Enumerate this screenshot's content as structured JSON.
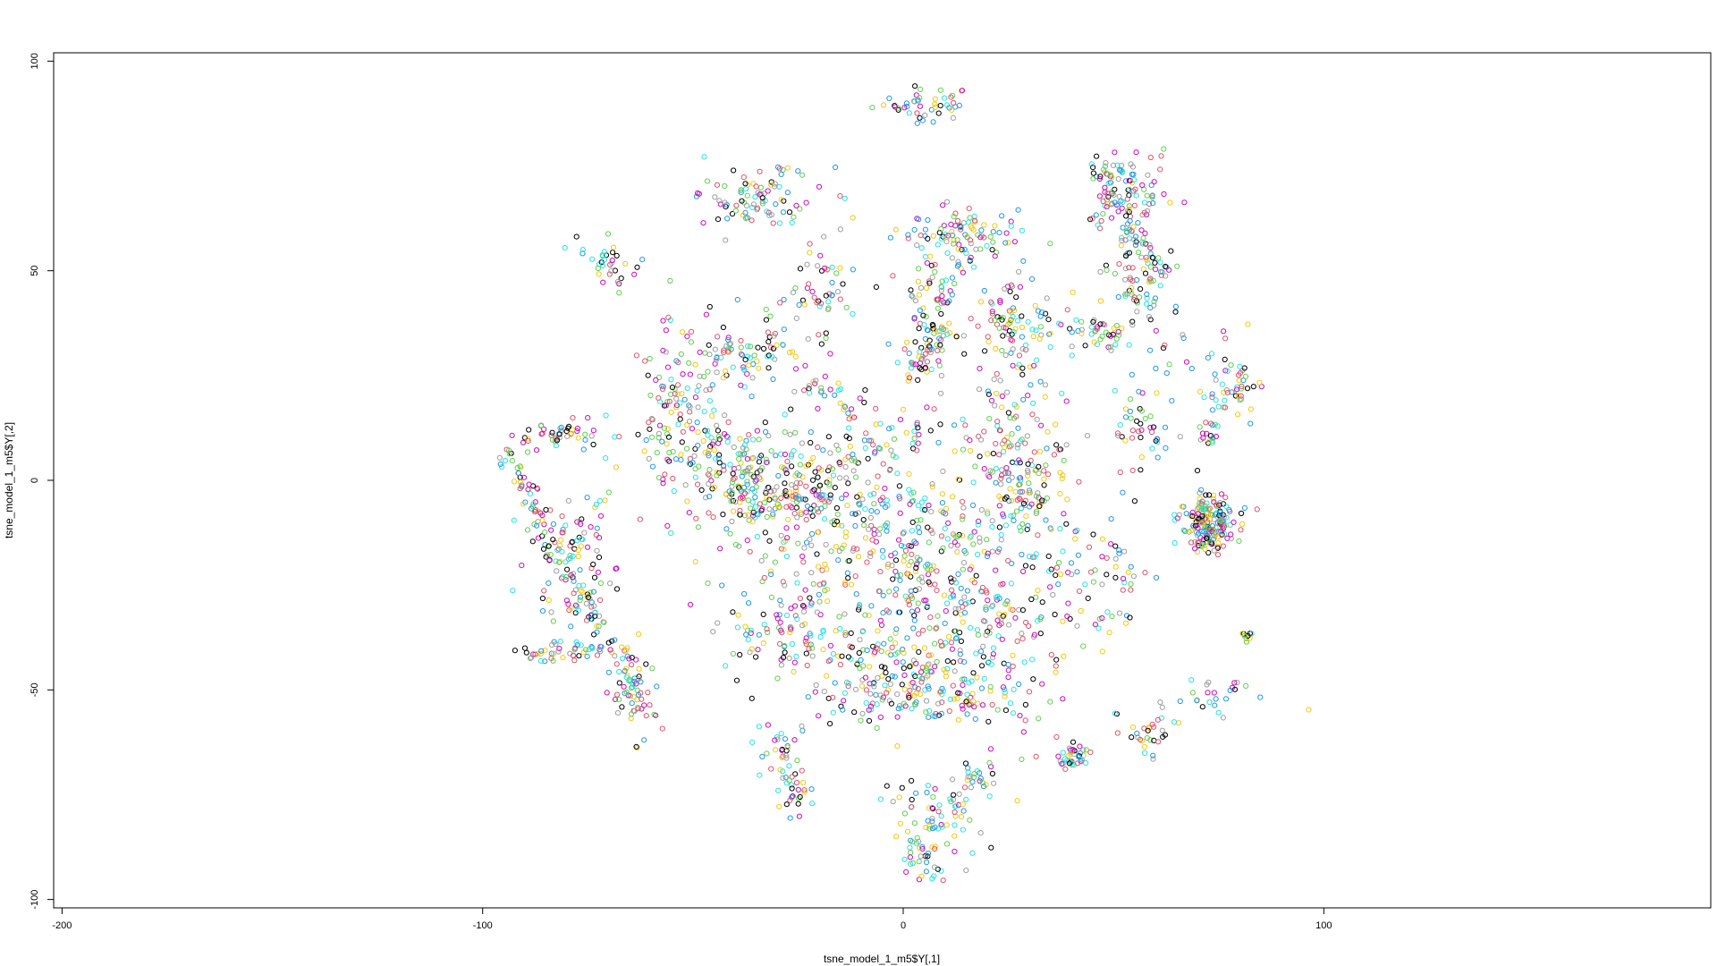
{
  "chart_data": {
    "type": "scatter",
    "title": "",
    "xlabel": "tsne_model_1_m5$Y[,1]",
    "ylabel": "tsne_model_1_m5$Y[,2]",
    "xlim": [
      -202,
      192
    ],
    "ylim": [
      -102,
      102
    ],
    "x_ticks": [
      -200,
      -100,
      0,
      100
    ],
    "x_tick_labels": [
      "-200",
      "-100",
      "0",
      "100"
    ],
    "y_ticks": [
      -100,
      -50,
      0,
      50,
      100
    ],
    "y_tick_labels": [
      "-100",
      "-50",
      "0",
      "50",
      "100"
    ],
    "grid": false,
    "legend": "none",
    "marker": "open-circle",
    "point_colors": [
      "#000000",
      "#DF536B",
      "#61D04F",
      "#2297E6",
      "#28E2E5",
      "#CD0BBC",
      "#F5C710",
      "#9E9E9E"
    ],
    "clusters": [
      {
        "cx": 5,
        "cy": 90,
        "sx": 6,
        "sy": 2,
        "n": 45
      },
      {
        "cx": -35,
        "cy": 67,
        "sx": 8,
        "sy": 4,
        "n": 90
      },
      {
        "cx": -70,
        "cy": 52,
        "sx": 3,
        "sy": 3,
        "n": 35
      },
      {
        "cx": -19,
        "cy": 46,
        "sx": 4,
        "sy": 5,
        "n": 45
      },
      {
        "cx": 12,
        "cy": 58,
        "sx": 7,
        "sy": 4,
        "n": 90
      },
      {
        "cx": 5,
        "cy": 37,
        "sx": 4,
        "sy": 9,
        "n": 80
      },
      {
        "cx": 25,
        "cy": 38,
        "sx": 6,
        "sy": 6,
        "n": 90
      },
      {
        "cx": 53,
        "cy": 68,
        "sx": 5,
        "sy": 6,
        "n": 90
      },
      {
        "cx": 56,
        "cy": 45,
        "sx": 5,
        "sy": 7,
        "n": 80
      },
      {
        "cx": 46,
        "cy": 35,
        "sx": 4,
        "sy": 2,
        "n": 35
      },
      {
        "cx": -40,
        "cy": 30,
        "sx": 10,
        "sy": 5,
        "n": 120
      },
      {
        "cx": -55,
        "cy": 15,
        "sx": 4,
        "sy": 6,
        "n": 60
      },
      {
        "cx": -40,
        "cy": 5,
        "sx": 12,
        "sy": 6,
        "n": 160
      },
      {
        "cx": -25,
        "cy": -2,
        "sx": 10,
        "sy": 5,
        "n": 110
      },
      {
        "cx": -15,
        "cy": 20,
        "sx": 4,
        "sy": 2,
        "n": 25
      },
      {
        "cx": 25,
        "cy": 10,
        "sx": 6,
        "sy": 10,
        "n": 110
      },
      {
        "cx": 30,
        "cy": -2,
        "sx": 4,
        "sy": 6,
        "n": 60
      },
      {
        "cx": 58,
        "cy": 12,
        "sx": 4,
        "sy": 5,
        "n": 40
      },
      {
        "cx": 78,
        "cy": 23,
        "sx": 4,
        "sy": 5,
        "n": 40
      },
      {
        "cx": 0,
        "cy": -15,
        "sx": 22,
        "sy": 10,
        "n": 360
      },
      {
        "cx": 15,
        "cy": -35,
        "sx": 15,
        "sy": 10,
        "n": 260
      },
      {
        "cx": -30,
        "cy": -35,
        "sx": 7,
        "sy": 6,
        "n": 80
      },
      {
        "cx": -10,
        "cy": -45,
        "sx": 8,
        "sy": 8,
        "n": 90
      },
      {
        "cx": 10,
        "cy": -52,
        "sx": 12,
        "sy": 3,
        "n": 100
      },
      {
        "cx": -30,
        "cy": -65,
        "sx": 3,
        "sy": 4,
        "n": 30
      },
      {
        "cx": -25,
        "cy": -75,
        "sx": 3,
        "sy": 3,
        "n": 25
      },
      {
        "cx": 10,
        "cy": -78,
        "sx": 8,
        "sy": 6,
        "n": 70
      },
      {
        "cx": 5,
        "cy": -92,
        "sx": 2,
        "sy": 2,
        "n": 12
      },
      {
        "cx": 40,
        "cy": -66,
        "sx": 1.5,
        "sy": 1.5,
        "n": 40
      },
      {
        "cx": 73,
        "cy": -10,
        "sx": 3.5,
        "sy": 2.5,
        "n": 120
      },
      {
        "cx": 58,
        "cy": -60,
        "sx": 3,
        "sy": 3,
        "n": 30
      },
      {
        "cx": 75,
        "cy": -52,
        "sx": 5,
        "sy": 3,
        "n": 25
      },
      {
        "cx": 50,
        "cy": -25,
        "sx": 4,
        "sy": 8,
        "n": 35
      },
      {
        "cx": 82,
        "cy": -37,
        "sx": 1,
        "sy": 1,
        "n": 10
      },
      {
        "cx": -82,
        "cy": 11,
        "sx": 6,
        "sy": 2,
        "n": 45
      },
      {
        "cx": -80,
        "cy": -20,
        "sx": 6,
        "sy": 8,
        "n": 90
      },
      {
        "cx": -80,
        "cy": -41,
        "sx": 6,
        "sy": 1,
        "n": 45
      },
      {
        "cx": -65,
        "cy": -50,
        "sx": 3,
        "sy": 6,
        "n": 35
      },
      {
        "cx": -30,
        "cy": -5,
        "sx": 8,
        "sy": 3,
        "n": 60
      },
      {
        "cx": -5,
        "cy": 10,
        "sx": 6,
        "sy": 4,
        "n": 50
      }
    ],
    "curve_segments": [
      {
        "x1": -94,
        "y1": 7,
        "x2": -78,
        "y2": -25,
        "n": 70
      },
      {
        "x1": -78,
        "y1": -25,
        "x2": -58,
        "y2": -58,
        "n": 70
      },
      {
        "x1": 3,
        "y1": 25,
        "x2": 18,
        "y2": 60,
        "n": 50
      },
      {
        "x1": 45,
        "y1": 75,
        "x2": 62,
        "y2": 48,
        "n": 60
      },
      {
        "x1": 0,
        "y1": -92,
        "x2": 18,
        "y2": -70,
        "n": 40
      },
      {
        "x1": 82,
        "y1": 28,
        "x2": 70,
        "y2": 5,
        "n": 30
      }
    ],
    "rings": [
      {
        "cx": 73,
        "cy": -10,
        "r": 5.8,
        "n": 70
      }
    ]
  }
}
